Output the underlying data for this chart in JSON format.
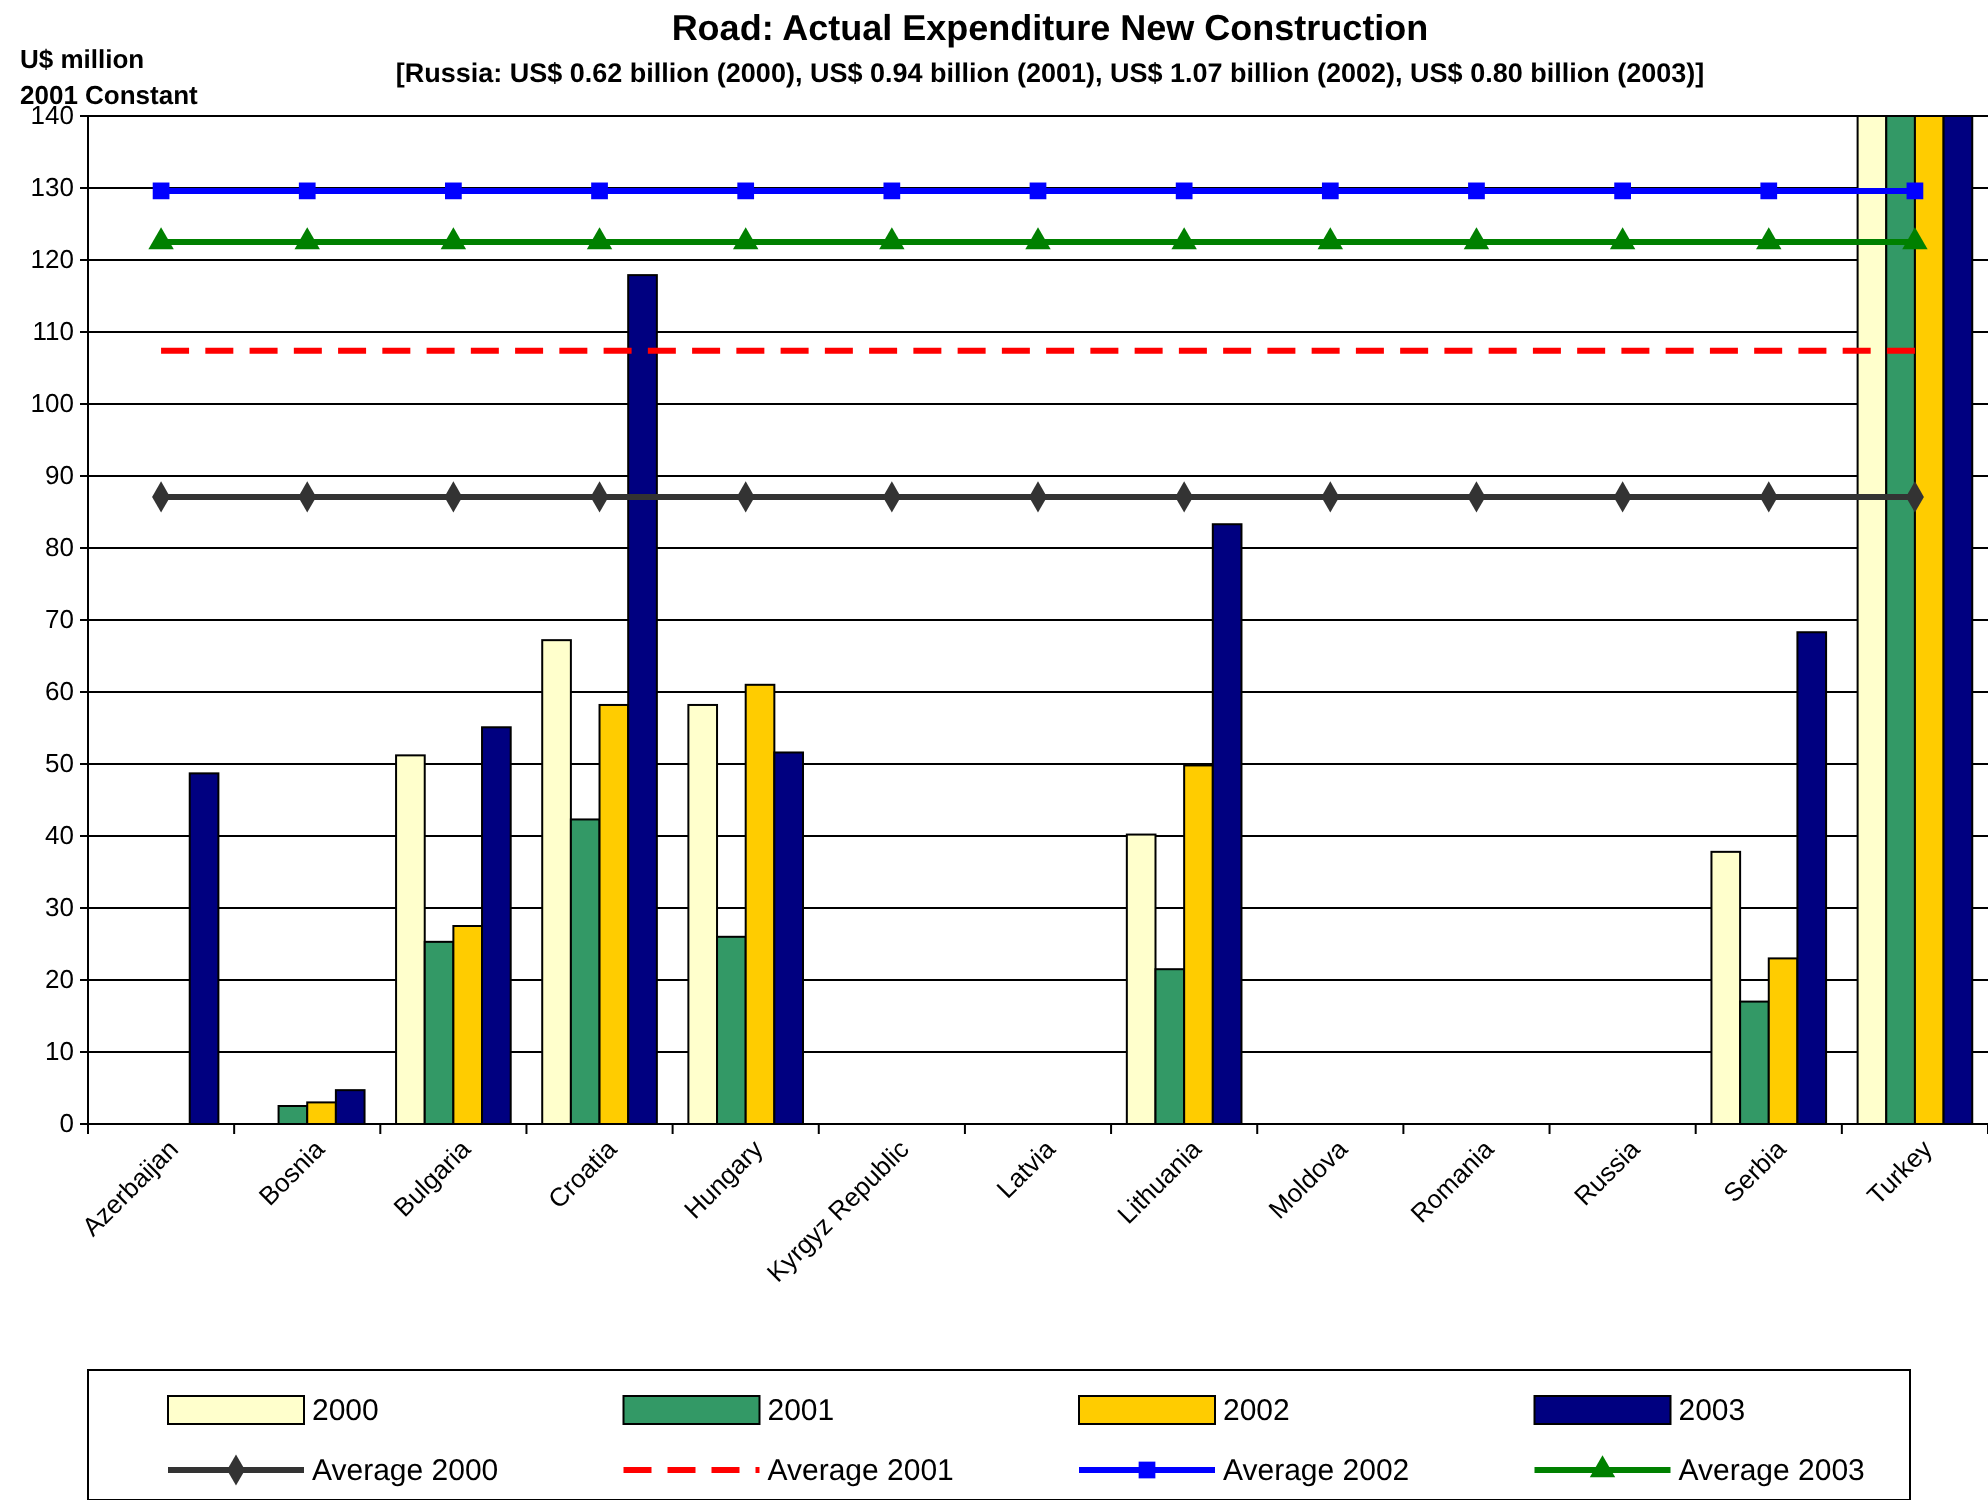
{
  "chart_data": {
    "type": "bar",
    "title": "Road: Actual Expenditure New Construction",
    "subtitle": "[Russia: US$ 0.62 billion (2000), US$ 0.94 billion (2001), US$ 1.07 billion (2002), US$ 0.80 billion (2003)]",
    "ylabel": "U$ million\n2001 Constant",
    "categories": [
      "Azerbaijan",
      "Bosnia",
      "Bulgaria",
      "Croatia",
      "Hungary",
      "Kyrgyz Republic",
      "Latvia",
      "Lithuania",
      "Moldova",
      "Romania",
      "Russia",
      "Serbia",
      "Turkey"
    ],
    "series": [
      {
        "name": "2000",
        "color": "#ffffcc",
        "values": [
          null,
          null,
          51.2,
          67.2,
          58.2,
          null,
          null,
          40.2,
          null,
          null,
          null,
          37.8,
          140
        ]
      },
      {
        "name": "2001",
        "color": "#339966",
        "values": [
          null,
          2.5,
          25.3,
          42.3,
          26,
          null,
          null,
          21.5,
          null,
          null,
          null,
          17,
          140
        ]
      },
      {
        "name": "2002",
        "color": "#ffcc00",
        "values": [
          null,
          3,
          27.5,
          58.2,
          61,
          null,
          null,
          49.8,
          null,
          null,
          null,
          23,
          140
        ]
      },
      {
        "name": "2003",
        "color": "#000080",
        "values": [
          48.7,
          4.7,
          55.1,
          117.9,
          51.6,
          null,
          null,
          83.3,
          null,
          null,
          null,
          68.3,
          140
        ]
      },
      {
        "name": "Average 2000",
        "type": "line",
        "color": "#333333",
        "marker": "diamond",
        "line_style": "solid",
        "values": [
          87.1,
          87.1,
          87.1,
          87.1,
          87.1,
          87.1,
          87.1,
          87.1,
          87.1,
          87.1,
          87.1,
          87.1,
          87.1
        ]
      },
      {
        "name": "Average 2001",
        "type": "line",
        "color": "#ff0000",
        "marker": "none",
        "line_style": "dashed",
        "values": [
          107.4,
          107.4,
          107.4,
          107.4,
          107.4,
          107.4,
          107.4,
          107.4,
          107.4,
          107.4,
          107.4,
          107.4,
          107.4
        ]
      },
      {
        "name": "Average 2002",
        "type": "line",
        "color": "#0000ff",
        "marker": "square",
        "line_style": "solid",
        "values": [
          129.6,
          129.6,
          129.6,
          129.6,
          129.6,
          129.6,
          129.6,
          129.6,
          129.6,
          129.6,
          129.6,
          129.6,
          129.6
        ]
      },
      {
        "name": "Average 2003",
        "type": "line",
        "color": "#008000",
        "marker": "triangle",
        "line_style": "solid",
        "values": [
          122.5,
          122.5,
          122.5,
          122.5,
          122.5,
          122.5,
          122.5,
          122.5,
          122.5,
          122.5,
          122.5,
          122.5,
          122.5
        ]
      }
    ],
    "ylim": [
      0,
      140
    ],
    "yticks": [
      0,
      10,
      20,
      30,
      40,
      50,
      60,
      70,
      80,
      90,
      100,
      110,
      120,
      130,
      140
    ],
    "grid": "y",
    "legend": "bottom"
  }
}
